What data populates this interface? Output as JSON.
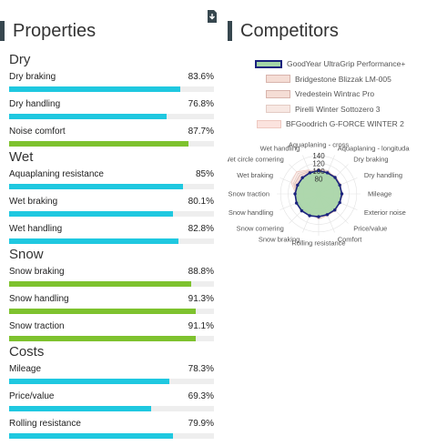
{
  "properties": {
    "title": "Properties",
    "groups": [
      {
        "name": "Dry",
        "metrics": [
          {
            "label": "Dry braking",
            "value": "83.6%",
            "fraction": 0.836,
            "color": "#1fc8e0"
          },
          {
            "label": "Dry handling",
            "value": "76.8%",
            "fraction": 0.768,
            "color": "#1fc8e0"
          },
          {
            "label": "Noise comfort",
            "value": "87.7%",
            "fraction": 0.877,
            "color": "#7ec22e"
          }
        ]
      },
      {
        "name": "Wet",
        "metrics": [
          {
            "label": "Aquaplaning resistance",
            "value": "85%",
            "fraction": 0.85,
            "color": "#1fc8e0"
          },
          {
            "label": "Wet braking",
            "value": "80.1%",
            "fraction": 0.801,
            "color": "#1fc8e0"
          },
          {
            "label": "Wet handling",
            "value": "82.8%",
            "fraction": 0.828,
            "color": "#1fc8e0"
          }
        ]
      },
      {
        "name": "Snow",
        "metrics": [
          {
            "label": "Snow braking",
            "value": "88.8%",
            "fraction": 0.888,
            "color": "#7ec22e"
          },
          {
            "label": "Snow handling",
            "value": "91.3%",
            "fraction": 0.913,
            "color": "#7ec22e"
          },
          {
            "label": "Snow traction",
            "value": "91.1%",
            "fraction": 0.911,
            "color": "#7ec22e"
          }
        ]
      },
      {
        "name": "Costs",
        "metrics": [
          {
            "label": "Mileage",
            "value": "78.3%",
            "fraction": 0.783,
            "color": "#1fc8e0"
          },
          {
            "label": "Price/value",
            "value": "69.3%",
            "fraction": 0.693,
            "color": "#1fc8e0"
          },
          {
            "label": "Rolling resistance",
            "value": "79.9%",
            "fraction": 0.799,
            "color": "#1fc8e0"
          }
        ]
      }
    ]
  },
  "competitors": {
    "title": "Competitors",
    "legend": [
      {
        "label": "GoodYear UltraGrip Performance+",
        "fill": "#a5d6a7",
        "stroke": "#1a237e"
      },
      {
        "label": "Bridgestone Blizzak LM-005",
        "fill": "#f5ddd5",
        "stroke": "#d8b4ac"
      },
      {
        "label": "Vredestein Wintrac Pro",
        "fill": "#f5ddd5",
        "stroke": "#d8b4ac"
      },
      {
        "label": "Pirelli Winter Sottozero 3",
        "fill": "#f8e8e3",
        "stroke": "#e3cbc4"
      },
      {
        "label": "BFGoodrich G-FORCE WINTER 2",
        "fill": "#fbe3de",
        "stroke": "#eec8c0"
      }
    ]
  },
  "download_icon": "download-icon",
  "chart_data": {
    "type": "radar",
    "axes": [
      "Aquaplaning - cross",
      "Aquaplaning - longitudal",
      "Dry braking",
      "Dry handling",
      "Mileage",
      "Exterior noise",
      "Price/value",
      "Comfort",
      "Rolling resistance",
      "Snow braking",
      "Snow cornering",
      "Snow handling",
      "Snow traction",
      "Wet braking",
      "Wet circle cornering",
      "Wet handling"
    ],
    "ticks": [
      80,
      100,
      120,
      140
    ],
    "range": [
      40,
      150
    ],
    "series": [
      {
        "name": "GoodYear UltraGrip Performance+",
        "values": [
          101,
          100,
          101,
          100,
          101,
          100,
          100,
          99,
          100,
          102,
          103,
          103,
          102,
          100,
          100,
          100
        ]
      },
      {
        "name": "Bridgestone Blizzak LM-005",
        "values": [
          100,
          102,
          104,
          102,
          96,
          96,
          102,
          101,
          106,
          96,
          97,
          97,
          98,
          108,
          110,
          104
        ]
      },
      {
        "name": "Vredestein Wintrac Pro",
        "values": [
          104,
          106,
          97,
          98,
          104,
          100,
          96,
          99,
          98,
          100,
          98,
          99,
          99,
          104,
          104,
          102
        ]
      },
      {
        "name": "Pirelli Winter Sottozero 3",
        "values": [
          102,
          98,
          102,
          104,
          98,
          102,
          98,
          103,
          99,
          99,
          100,
          100,
          98,
          112,
          116,
          106
        ]
      },
      {
        "name": "BFGoodrich G-FORCE WINTER 2",
        "values": [
          95,
          96,
          94,
          96,
          102,
          98,
          104,
          97,
          96,
          101,
          99,
          98,
          100,
          118,
          122,
          108
        ]
      }
    ]
  }
}
